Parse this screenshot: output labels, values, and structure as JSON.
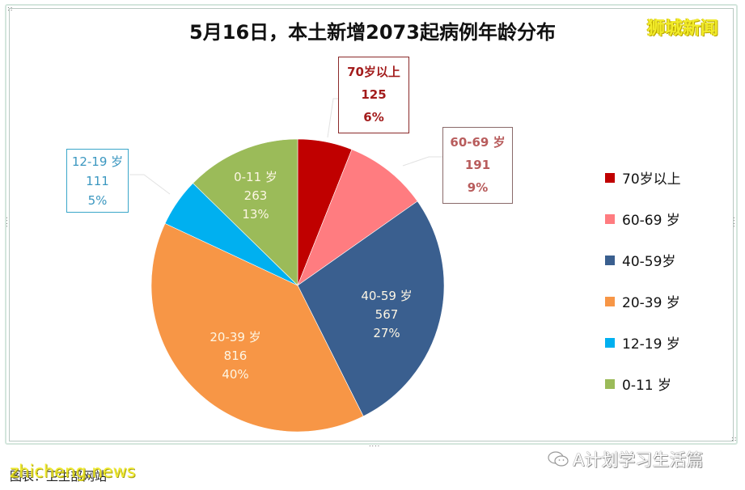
{
  "header": {
    "title": "5月16日，本土新增2073起病例年龄分布",
    "brand": "狮城新闻"
  },
  "chart_data": {
    "type": "pie",
    "title": "5月16日，本土新增2073起病例年龄分布",
    "total": 2073,
    "categories": [
      "70岁以上",
      "60-69 岁",
      "40-59岁",
      "20-39 岁",
      "12-19 岁",
      "0-11 岁"
    ],
    "values": [
      125,
      191,
      567,
      816,
      111,
      263
    ],
    "percentages": [
      "6%",
      "9%",
      "27%",
      "40%",
      "5%",
      "13%"
    ],
    "colors": [
      "#c00000",
      "#ff7c80",
      "#3a5f8f",
      "#f79646",
      "#00b0f0",
      "#9bbb59"
    ],
    "legend_position": "right",
    "start_angle_deg": 0,
    "direction": "clockwise"
  },
  "callouts": {
    "over70": {
      "label": "70岁以上",
      "value": "125",
      "pct": "6%"
    },
    "age60_69": {
      "label": "60-69 岁",
      "value": "191",
      "pct": "9%"
    },
    "age12_19": {
      "label": "12-19 岁",
      "value": "111",
      "pct": "5%"
    }
  },
  "slice_labels": {
    "age40_59": {
      "label": "40-59 岁",
      "value": "567",
      "pct": "27%"
    },
    "age20_39": {
      "label": "20-39 岁",
      "value": "816",
      "pct": "40%"
    },
    "age0_11": {
      "label": "0-11 岁",
      "value": "263",
      "pct": "13%"
    }
  },
  "legend": [
    {
      "label": "70岁以上",
      "color": "#c00000"
    },
    {
      "label": "60-69 岁",
      "color": "#ff7c80"
    },
    {
      "label": "40-59岁",
      "color": "#3a5f8f"
    },
    {
      "label": "20-39 岁",
      "color": "#f79646"
    },
    {
      "label": "12-19 岁",
      "color": "#00b0f0"
    },
    {
      "label": "0-11 岁",
      "color": "#9bbb59"
    }
  ],
  "footer": {
    "source": "图表：卫生部网站",
    "watermark_left": "zhicheng.news",
    "watermark_right": "A计划学习生活篇"
  }
}
